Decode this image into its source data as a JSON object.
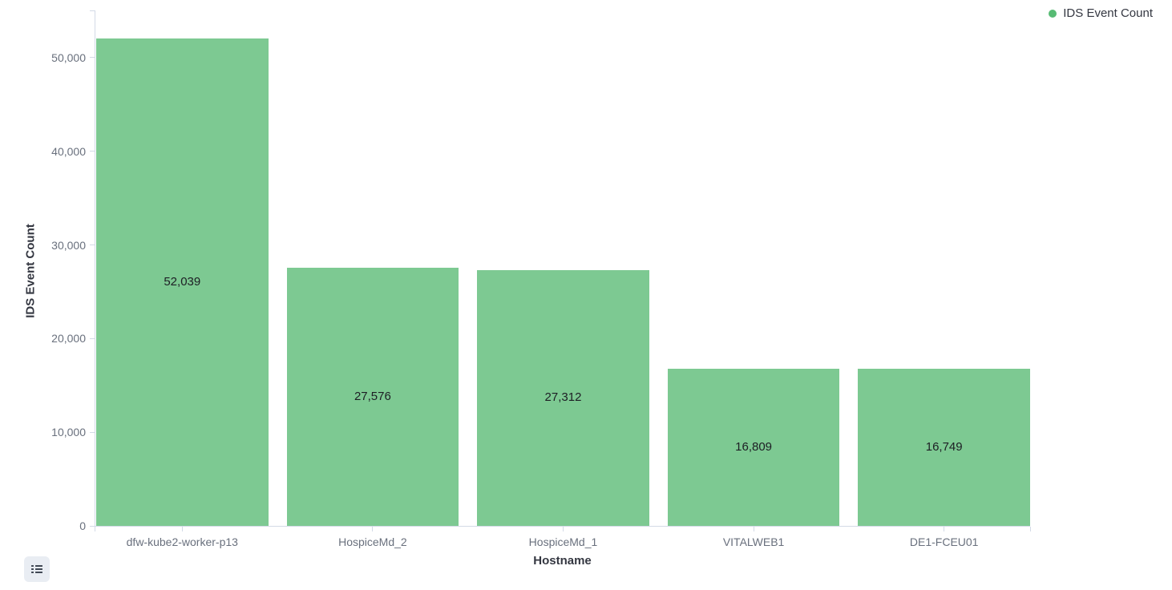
{
  "legend": {
    "position": "top-right",
    "items": [
      {
        "label": "IDS Event Count",
        "color": "#57bb74"
      }
    ]
  },
  "legend_toggle": {
    "icon": "list-icon"
  },
  "colors": {
    "bar": "#7dc992",
    "axis_line": "#d3dae6",
    "tick_text": "#69707d",
    "axis_title_text": "#343741",
    "value_label_text": "#1d1e24",
    "toggle_bg": "#e9edf3",
    "toggle_icon": "#404854"
  },
  "chart_data": {
    "type": "bar",
    "title": "",
    "xlabel": "Hostname",
    "ylabel": "IDS Event Count",
    "categories": [
      "dfw-kube2-worker-p13",
      "HospiceMd_2",
      "HospiceMd_1",
      "VITALWEB1",
      "DE1-FCEU01"
    ],
    "series": [
      {
        "name": "IDS Event Count",
        "values": [
          52039,
          27576,
          27312,
          16809,
          16749
        ]
      }
    ],
    "value_labels": [
      "52,039",
      "27,576",
      "27,312",
      "16,809",
      "16,749"
    ],
    "ytick_values": [
      0,
      10000,
      20000,
      30000,
      40000,
      50000
    ],
    "ytick_labels": [
      "0",
      "10,000",
      "20,000",
      "30,000",
      "40,000",
      "50,000"
    ],
    "ylim": [
      0,
      55050
    ],
    "grid": false,
    "legend_position": "top-right",
    "bar_color": "#7dc992"
  }
}
